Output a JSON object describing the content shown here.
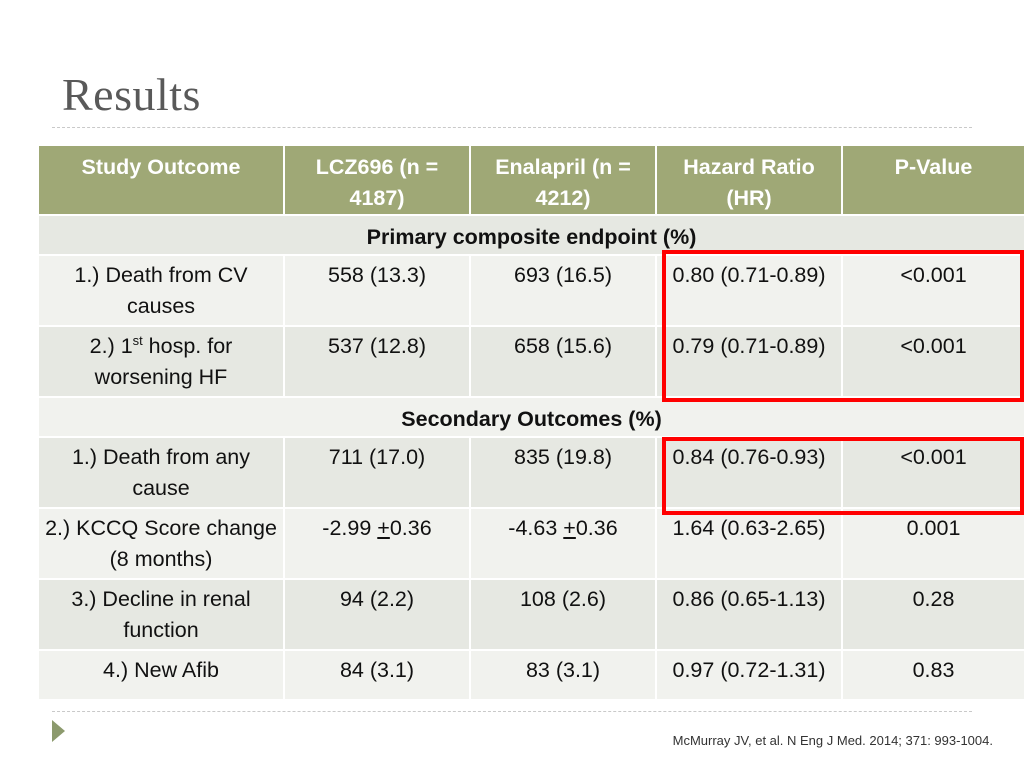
{
  "slide": {
    "title": "Results",
    "citation": "McMurray JV, et al. N Eng J Med. 2014; 371: 993-1004."
  },
  "table": {
    "headers": [
      "Study Outcome",
      "LCZ696 (n = 4187)",
      "Enalapril (n = 4212)",
      "Hazard Ratio (HR)",
      "P-Value"
    ],
    "section_primary": "Primary composite endpoint (%)",
    "primary_rows": [
      {
        "outcome": "1.) Death from CV causes",
        "lcz": "558 (13.3)",
        "enal": "693 (16.5)",
        "hr": "0.80 (0.71-0.89)",
        "p": "<0.001"
      },
      {
        "outcome_pre": "2.) 1",
        "outcome_sup": "st",
        "outcome_post": " hosp. for worsening HF",
        "lcz": "537 (12.8)",
        "enal": "658 (15.6)",
        "hr": "0.79 (0.71-0.89)",
        "p": "<0.001"
      }
    ],
    "section_secondary": "Secondary Outcomes (%)",
    "secondary_rows": [
      {
        "outcome": "1.) Death from any cause",
        "lcz": "711 (17.0)",
        "enal": "835 (19.8)",
        "hr": "0.84 (0.76-0.93)",
        "p": "<0.001"
      },
      {
        "outcome": "2.) KCCQ Score change (8 months)",
        "lcz_pre": "-2.99 ",
        "lcz_pm": "+",
        "lcz_post": "0.36",
        "enal_pre": "-4.63 ",
        "enal_pm": "+",
        "enal_post": "0.36",
        "hr": "1.64 (0.63-2.65)",
        "p": "0.001"
      },
      {
        "outcome": "3.) Decline in renal function",
        "lcz": "94 (2.2)",
        "enal": "108 (2.6)",
        "hr": "0.86 (0.65-1.13)",
        "p": "0.28"
      },
      {
        "outcome": "4.) New Afib",
        "lcz": "84 (3.1)",
        "enal": "83 (3.1)",
        "hr": "0.97 (0.72-1.31)",
        "p": "0.83"
      }
    ]
  },
  "colors": {
    "header_bg": "#9fa876",
    "row_dark": "#e6e8e2",
    "row_light": "#f1f2ee",
    "highlight": "#ff0000"
  },
  "icons": {
    "bullet": "play-icon"
  }
}
